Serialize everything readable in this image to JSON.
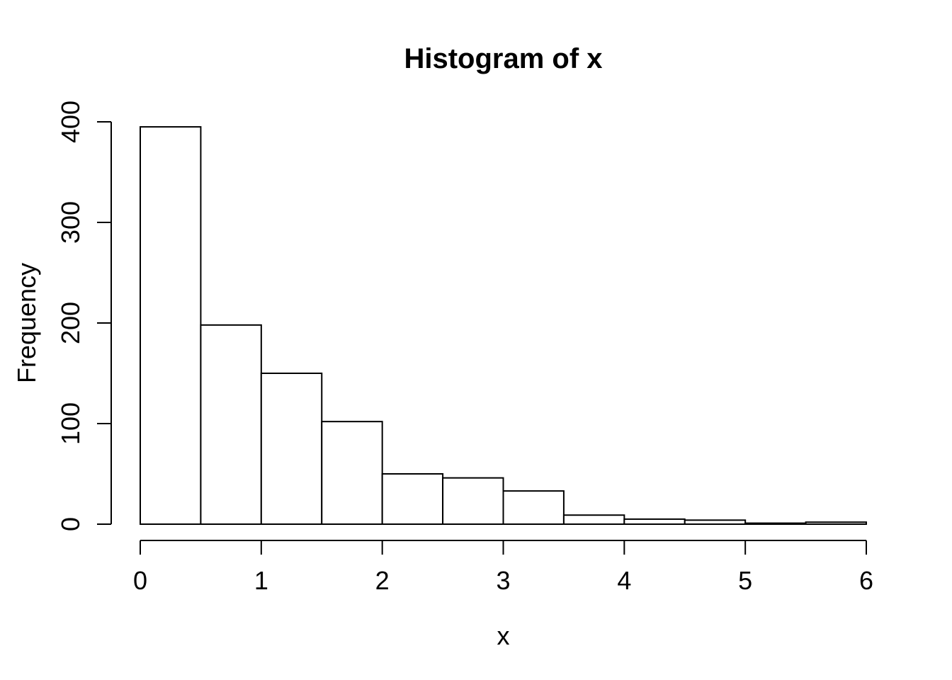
{
  "chart_data": {
    "type": "bar",
    "subtype": "histogram",
    "title": "Histogram of x",
    "xlabel": "x",
    "ylabel": "Frequency",
    "breaks": [
      0,
      0.5,
      1,
      1.5,
      2,
      2.5,
      3,
      3.5,
      4,
      4.5,
      5,
      5.5,
      6
    ],
    "counts": [
      395,
      198,
      150,
      102,
      50,
      46,
      33,
      9,
      5,
      4,
      1,
      2
    ],
    "x_ticks": [
      0,
      1,
      2,
      3,
      4,
      5,
      6
    ],
    "y_ticks": [
      0,
      100,
      200,
      300,
      400
    ],
    "xlim": [
      0,
      6
    ],
    "ylim": [
      0,
      400
    ],
    "grid": false,
    "legend": false,
    "colors": {
      "bar_fill": "#ffffff",
      "bar_stroke": "#000000",
      "axis": "#000000",
      "text": "#000000",
      "background": "#ffffff"
    }
  }
}
